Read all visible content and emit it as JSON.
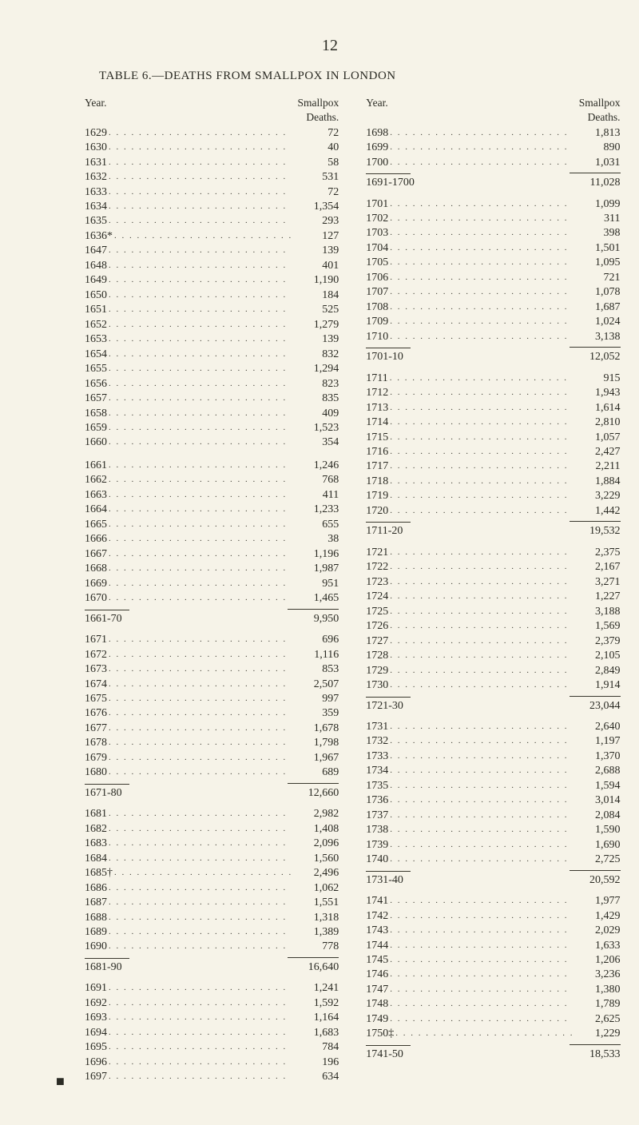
{
  "page_number": "12",
  "title": "TABLE 6.—DEATHS FROM SMALLPOX IN LONDON",
  "col_header_year": "Year.",
  "col_header_sp1": "Smallpox",
  "col_header_sp2": "Deaths.",
  "left_block1": [
    [
      "1629",
      "72"
    ],
    [
      "1630",
      "40"
    ],
    [
      "1631",
      "58"
    ],
    [
      "1632",
      "531"
    ],
    [
      "1633",
      "72"
    ],
    [
      "1634",
      "1,354"
    ],
    [
      "1635",
      "293"
    ],
    [
      "1636*",
      "127"
    ],
    [
      "1647",
      "139"
    ],
    [
      "1648",
      "401"
    ],
    [
      "1649",
      "1,190"
    ],
    [
      "1650",
      "184"
    ],
    [
      "1651",
      "525"
    ],
    [
      "1652",
      "1,279"
    ],
    [
      "1653",
      "139"
    ],
    [
      "1654",
      "832"
    ],
    [
      "1655",
      "1,294"
    ],
    [
      "1656",
      "823"
    ],
    [
      "1657",
      "835"
    ],
    [
      "1658",
      "409"
    ],
    [
      "1659",
      "1,523"
    ],
    [
      "1660",
      "354"
    ]
  ],
  "left_block2": [
    [
      "1661",
      "1,246"
    ],
    [
      "1662",
      "768"
    ],
    [
      "1663",
      "411"
    ],
    [
      "1664",
      "1,233"
    ],
    [
      "1665",
      "655"
    ],
    [
      "1666",
      "38"
    ],
    [
      "1667",
      "1,196"
    ],
    [
      "1668",
      "1,987"
    ],
    [
      "1669",
      "951"
    ],
    [
      "1670",
      "1,465"
    ]
  ],
  "left_sub1": [
    "1661-70",
    "9,950"
  ],
  "left_block3": [
    [
      "1671",
      "696"
    ],
    [
      "1672",
      "1,116"
    ],
    [
      "1673",
      "853"
    ],
    [
      "1674",
      "2,507"
    ],
    [
      "1675",
      "997"
    ],
    [
      "1676",
      "359"
    ],
    [
      "1677",
      "1,678"
    ],
    [
      "1678",
      "1,798"
    ],
    [
      "1679",
      "1,967"
    ],
    [
      "1680",
      "689"
    ]
  ],
  "left_sub2": [
    "1671-80",
    "12,660"
  ],
  "left_block4": [
    [
      "1681",
      "2,982"
    ],
    [
      "1682",
      "1,408"
    ],
    [
      "1683",
      "2,096"
    ],
    [
      "1684",
      "1,560"
    ],
    [
      "1685†",
      "2,496"
    ],
    [
      "1686",
      "1,062"
    ],
    [
      "1687",
      "1,551"
    ],
    [
      "1688",
      "1,318"
    ],
    [
      "1689",
      "1,389"
    ],
    [
      "1690",
      "778"
    ]
  ],
  "left_sub3": [
    "1681-90",
    "16,640"
  ],
  "left_block5": [
    [
      "1691",
      "1,241"
    ],
    [
      "1692",
      "1,592"
    ],
    [
      "1693",
      "1,164"
    ],
    [
      "1694",
      "1,683"
    ],
    [
      "1695",
      "784"
    ],
    [
      "1696",
      "196"
    ],
    [
      "1697",
      "634"
    ]
  ],
  "right_block1": [
    [
      "1698",
      "1,813"
    ],
    [
      "1699",
      "890"
    ],
    [
      "1700",
      "1,031"
    ]
  ],
  "right_sub1": [
    "1691-1700",
    "11,028"
  ],
  "right_block2": [
    [
      "1701",
      "1,099"
    ],
    [
      "1702",
      "311"
    ],
    [
      "1703",
      "398"
    ],
    [
      "1704",
      "1,501"
    ],
    [
      "1705",
      "1,095"
    ],
    [
      "1706",
      "721"
    ],
    [
      "1707",
      "1,078"
    ],
    [
      "1708",
      "1,687"
    ],
    [
      "1709",
      "1,024"
    ],
    [
      "1710",
      "3,138"
    ]
  ],
  "right_sub2": [
    "1701-10",
    "12,052"
  ],
  "right_block3": [
    [
      "1711",
      "915"
    ],
    [
      "1712",
      "1,943"
    ],
    [
      "1713",
      "1,614"
    ],
    [
      "1714",
      "2,810"
    ],
    [
      "1715",
      "1,057"
    ],
    [
      "1716",
      "2,427"
    ],
    [
      "1717",
      "2,211"
    ],
    [
      "1718",
      "1,884"
    ],
    [
      "1719",
      "3,229"
    ],
    [
      "1720",
      "1,442"
    ]
  ],
  "right_sub3": [
    "1711-20",
    "19,532"
  ],
  "right_block4": [
    [
      "1721",
      "2,375"
    ],
    [
      "1722",
      "2,167"
    ],
    [
      "1723",
      "3,271"
    ],
    [
      "1724",
      "1,227"
    ],
    [
      "1725",
      "3,188"
    ],
    [
      "1726",
      "1,569"
    ],
    [
      "1727",
      "2,379"
    ],
    [
      "1728",
      "2,105"
    ],
    [
      "1729",
      "2,849"
    ],
    [
      "1730",
      "1,914"
    ]
  ],
  "right_sub4": [
    "1721-30",
    "23,044"
  ],
  "right_block5": [
    [
      "1731",
      "2,640"
    ],
    [
      "1732",
      "1,197"
    ],
    [
      "1733",
      "1,370"
    ],
    [
      "1734",
      "2,688"
    ],
    [
      "1735",
      "1,594"
    ],
    [
      "1736",
      "3,014"
    ],
    [
      "1737",
      "2,084"
    ],
    [
      "1738",
      "1,590"
    ],
    [
      "1739",
      "1,690"
    ],
    [
      "1740",
      "2,725"
    ]
  ],
  "right_sub5": [
    "1731-40",
    "20,592"
  ],
  "right_block6": [
    [
      "1741",
      "1,977"
    ],
    [
      "1742",
      "1,429"
    ],
    [
      "1743",
      "2,029"
    ],
    [
      "1744",
      "1,633"
    ],
    [
      "1745",
      "1,206"
    ],
    [
      "1746",
      "3,236"
    ],
    [
      "1747",
      "1,380"
    ],
    [
      "1748",
      "1,789"
    ],
    [
      "1749",
      "2,625"
    ],
    [
      "1750‡",
      "1,229"
    ]
  ],
  "right_sub6": [
    "1741-50",
    "18,533"
  ]
}
